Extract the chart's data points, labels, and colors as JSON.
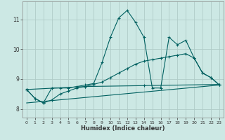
{
  "xlabel": "Humidex (Indice chaleur)",
  "bg_color": "#cce8e4",
  "grid_color": "#b0ccc8",
  "line_color": "#006060",
  "xlim": [
    -0.5,
    23.5
  ],
  "ylim": [
    7.7,
    11.6
  ],
  "xticks": [
    0,
    1,
    2,
    3,
    4,
    5,
    6,
    7,
    8,
    9,
    10,
    11,
    12,
    13,
    14,
    15,
    16,
    17,
    18,
    19,
    20,
    21,
    22,
    23
  ],
  "yticks": [
    8,
    9,
    10,
    11
  ],
  "line1_x": [
    0,
    1,
    2,
    3,
    4,
    5,
    6,
    7,
    8,
    9,
    10,
    11,
    12,
    13,
    14,
    15,
    16,
    17,
    18,
    19,
    20,
    21,
    22,
    23
  ],
  "line1_y": [
    8.65,
    8.35,
    8.2,
    8.7,
    8.7,
    8.7,
    8.75,
    8.8,
    8.85,
    9.55,
    10.4,
    11.05,
    11.3,
    10.9,
    10.4,
    8.7,
    8.7,
    10.4,
    10.15,
    10.3,
    9.7,
    9.2,
    9.05,
    8.8
  ],
  "line2_x": [
    0,
    1,
    2,
    3,
    4,
    5,
    6,
    7,
    8,
    9,
    10,
    11,
    12,
    13,
    14,
    15,
    16,
    17,
    18,
    19,
    20,
    21,
    22,
    23
  ],
  "line2_y": [
    8.65,
    8.35,
    8.2,
    8.3,
    8.5,
    8.6,
    8.7,
    8.75,
    8.82,
    8.9,
    9.05,
    9.2,
    9.35,
    9.5,
    9.6,
    9.65,
    9.7,
    9.75,
    9.8,
    9.85,
    9.7,
    9.2,
    9.05,
    8.8
  ],
  "line3_x": [
    0,
    7,
    14,
    23
  ],
  "line3_y": [
    8.65,
    8.75,
    8.78,
    8.82
  ],
  "line4_x": [
    0,
    23
  ],
  "line4_y": [
    8.2,
    8.8
  ]
}
